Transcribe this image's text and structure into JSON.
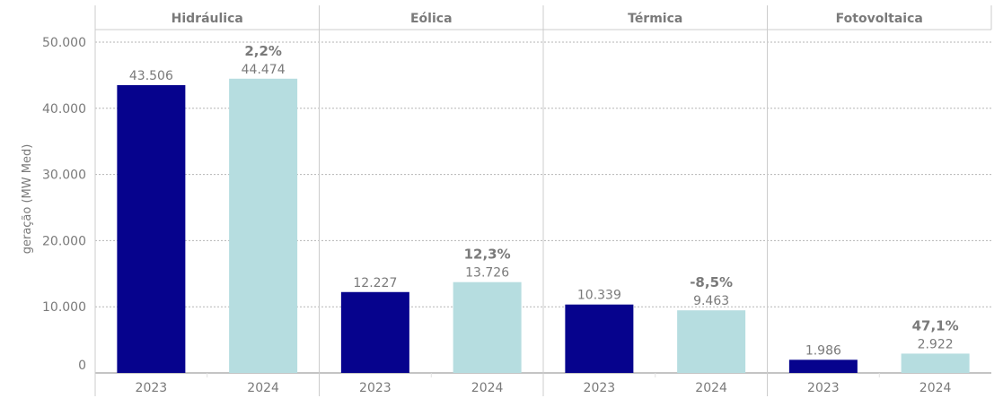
{
  "chart_data": {
    "type": "bar",
    "ylabel": "geração (MW Med)",
    "ylim": [
      0,
      50000
    ],
    "yticks": [
      {
        "value": 0,
        "label": "0"
      },
      {
        "value": 10000,
        "label": "10.000"
      },
      {
        "value": 20000,
        "label": "20.000"
      },
      {
        "value": 30000,
        "label": "30.000"
      },
      {
        "value": 40000,
        "label": "40.000"
      },
      {
        "value": 50000,
        "label": "50.000"
      }
    ],
    "grid": true,
    "colors": {
      "2023": "#06038d",
      "2024": "#b6dde0"
    },
    "panels": [
      {
        "title": "Hidráulica",
        "change": "2,2%",
        "bars": [
          {
            "year": "2023",
            "value": 43506,
            "label": "43.506"
          },
          {
            "year": "2024",
            "value": 44474,
            "label": "44.474"
          }
        ]
      },
      {
        "title": "Eólica",
        "change": "12,3%",
        "bars": [
          {
            "year": "2023",
            "value": 12227,
            "label": "12.227"
          },
          {
            "year": "2024",
            "value": 13726,
            "label": "13.726"
          }
        ]
      },
      {
        "title": "Térmica",
        "change": "-8,5%",
        "bars": [
          {
            "year": "2023",
            "value": 10339,
            "label": "10.339"
          },
          {
            "year": "2024",
            "value": 9463,
            "label": "9.463"
          }
        ]
      },
      {
        "title": "Fotovoltaica",
        "change": "47,1%",
        "bars": [
          {
            "year": "2023",
            "value": 1986,
            "label": "1.986"
          },
          {
            "year": "2024",
            "value": 2922,
            "label": "2.922"
          }
        ]
      }
    ]
  }
}
